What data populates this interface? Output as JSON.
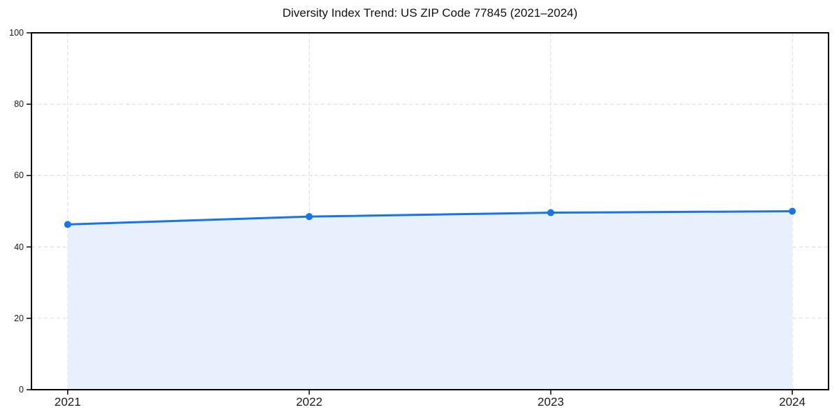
{
  "title": "Diversity Index Trend: US ZIP Code 77845 (2021–2024)",
  "colors": {
    "background": "#ffffff",
    "line": "#1a73e8",
    "marker": "#1a73e8",
    "area_fill": "#e8f0fe",
    "grid": "#dcdcdc",
    "axis": "#000000",
    "text": "#1a1a1a"
  },
  "chart_data": {
    "type": "line",
    "title": "Diversity Index Trend: US ZIP Code 77845 (2021–2024)",
    "x": [
      2021,
      2022,
      2023,
      2024
    ],
    "xtick_labels": [
      "2021",
      "2022",
      "2023",
      "2024"
    ],
    "yticks": [
      0,
      20,
      40,
      60,
      80,
      100
    ],
    "ytick_labels": [
      "0",
      "20",
      "40",
      "60",
      "80",
      "100"
    ],
    "series": [
      {
        "name": "Diversity Index",
        "values": [
          46.3,
          48.5,
          49.6,
          50.0
        ]
      }
    ],
    "xlabel": "",
    "ylabel": "",
    "xlim": [
      2020.85,
      2024.15
    ],
    "ylim": [
      0,
      100
    ],
    "grid": true,
    "grid_style": "dashed",
    "area_fill": true,
    "markers": true,
    "marker_style": "circle",
    "legend_position": "none"
  }
}
